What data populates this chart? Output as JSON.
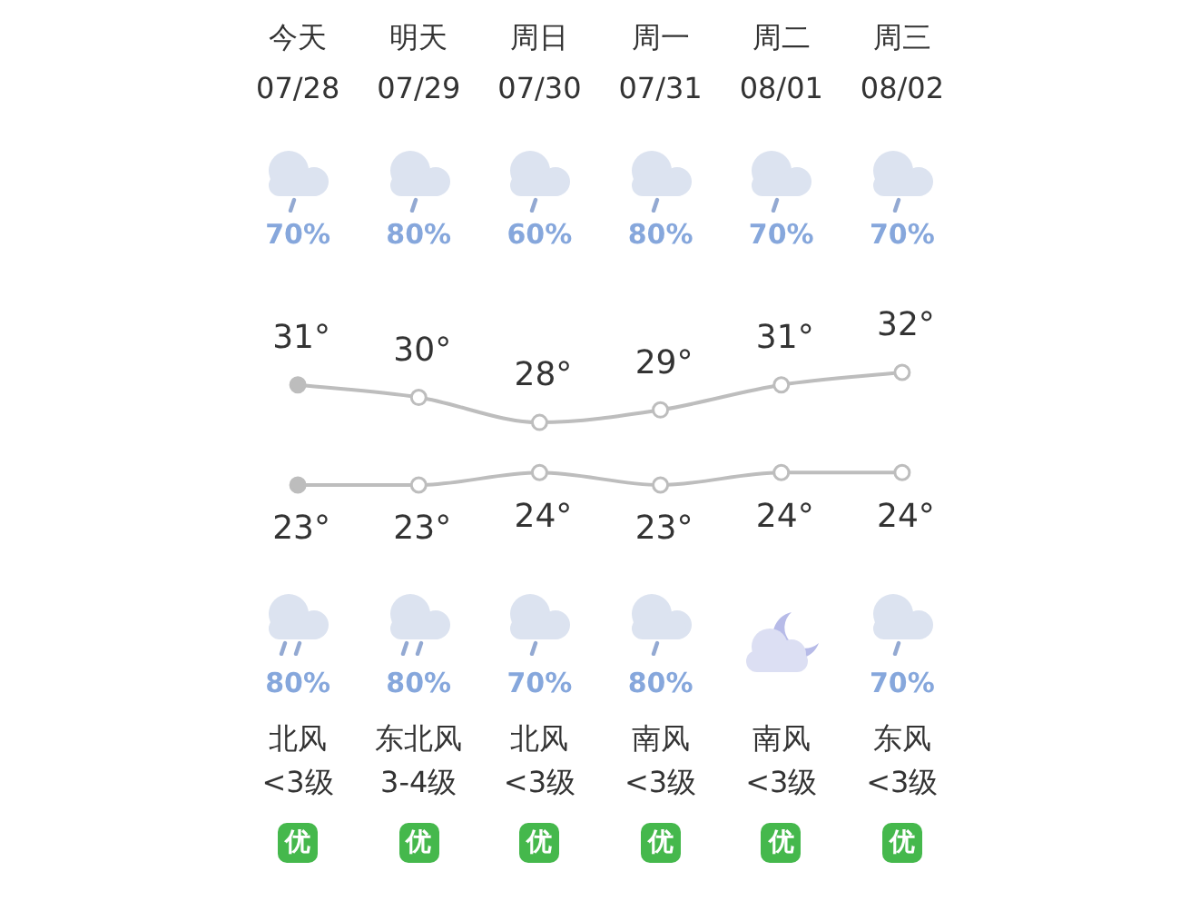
{
  "chart_data": {
    "type": "line",
    "categories": [
      "今天\n07/28",
      "明天\n07/29",
      "周日\n07/30",
      "周一\n07/31",
      "周二\n08/01",
      "周三\n08/02"
    ],
    "series": [
      {
        "color": "#bdbdbd",
        "values": [
          31,
          30,
          28,
          29,
          31,
          32
        ],
        "value_labels": [
          "31°",
          "30°",
          "28°",
          "29°",
          "31°",
          "32°"
        ]
      },
      {
        "color": "#bdbdbd",
        "values": [
          23,
          23,
          24,
          23,
          24,
          24
        ],
        "value_labels": [
          "23°",
          "23°",
          "24°",
          "23°",
          "24°",
          "24°"
        ]
      }
    ],
    "marker": "circle",
    "tick_labels": "x",
    "annotations": [
      "70%",
      "80%",
      "60%",
      "80%",
      "70%",
      "70%",
      "80%\n北风\n<3级",
      "80%\n东北风\n3-4级",
      "70%\n北风\n<3级",
      "80%\n南风\n<3级",
      "南风\n<3级",
      "70%\n东风\n<3级",
      "优",
      "优",
      "优",
      "优",
      "优",
      "优"
    ]
  }
}
